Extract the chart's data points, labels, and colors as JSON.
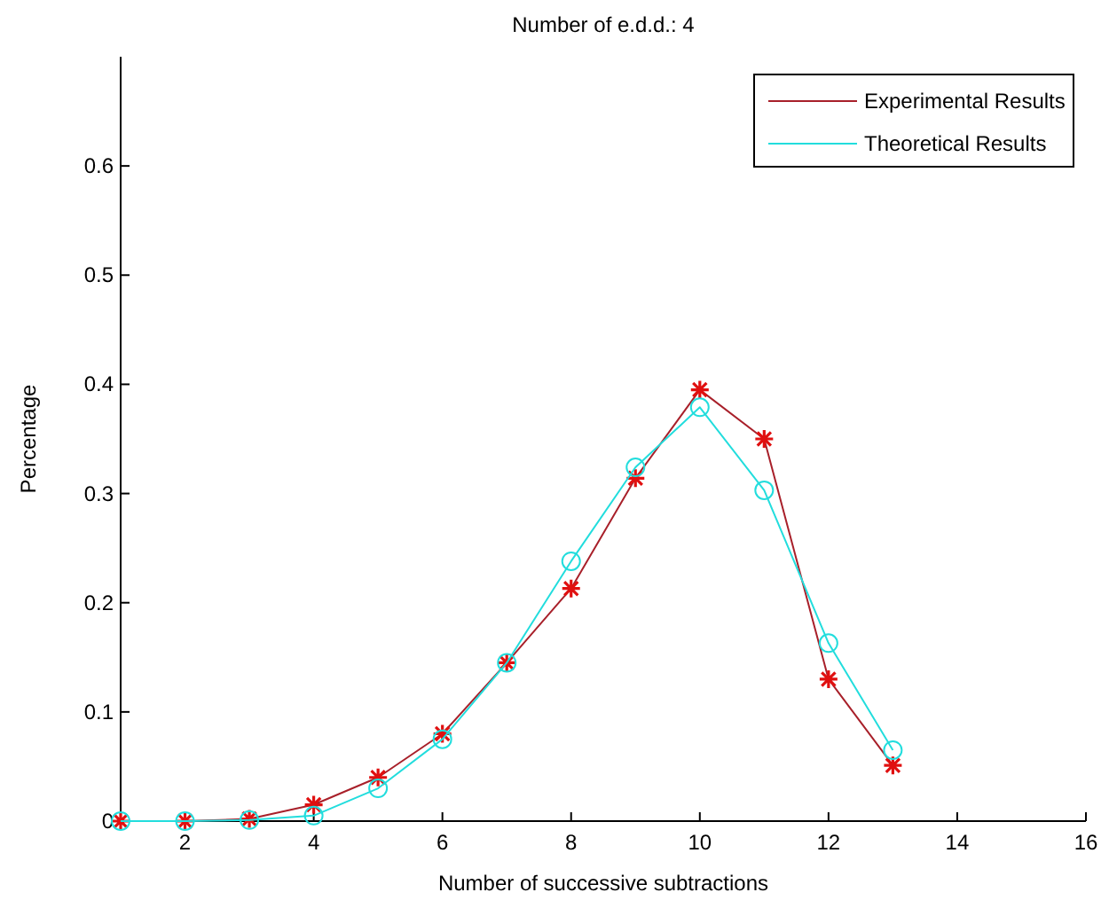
{
  "chart_data": {
    "type": "line",
    "title": "Number of e.d.d.: 4",
    "xlabel": "Number of successive subtractions",
    "ylabel": "Percentage",
    "x": [
      1,
      2,
      3,
      4,
      5,
      6,
      7,
      8,
      9,
      10,
      11,
      12,
      13
    ],
    "series": [
      {
        "name": "Experimental Results",
        "color": "#a8202a",
        "marker": "cross",
        "values": [
          0,
          0,
          0.002,
          0.015,
          0.04,
          0.08,
          0.145,
          0.213,
          0.314,
          0.395,
          0.35,
          0.13,
          0.051
        ]
      },
      {
        "name": "Theoretical Results",
        "color": "#22dddd",
        "marker": "circle",
        "values": [
          0,
          0,
          0.001,
          0.005,
          0.03,
          0.075,
          0.145,
          0.238,
          0.324,
          0.379,
          0.303,
          0.163,
          0.065
        ]
      }
    ],
    "xlim": [
      1,
      16
    ],
    "xticks": [
      2,
      4,
      6,
      8,
      10,
      12,
      14,
      16
    ],
    "ylim": [
      0,
      0.7
    ],
    "yticks": [
      0,
      0.1,
      0.2,
      0.3,
      0.4,
      0.5,
      0.6
    ],
    "legend": "top right",
    "grid": false
  }
}
